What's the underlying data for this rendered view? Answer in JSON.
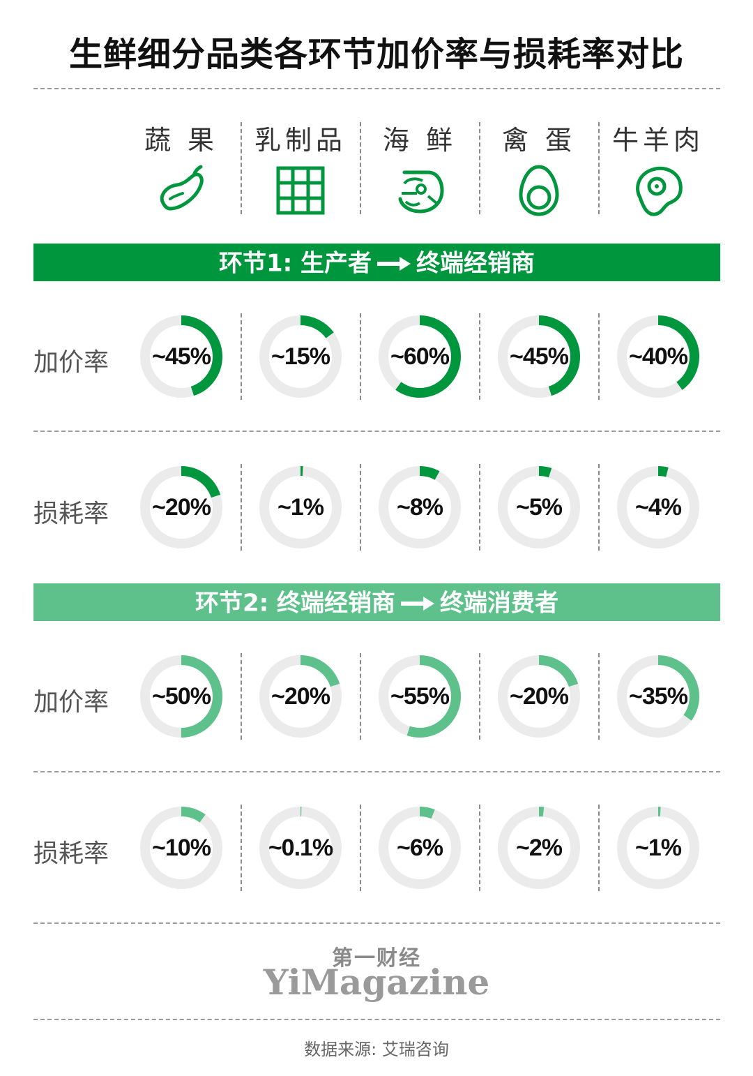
{
  "title": "生鲜细分品类各环节加价率与损耗率对比",
  "categories": [
    {
      "label": "蔬 果",
      "icon": "eggplant-icon"
    },
    {
      "label": "乳制品",
      "icon": "milk-carton-grid-icon"
    },
    {
      "label": "海 鲜",
      "icon": "shrimp-icon"
    },
    {
      "label": "禽 蛋",
      "icon": "egg-icon"
    },
    {
      "label": "牛羊肉",
      "icon": "meat-steak-icon"
    }
  ],
  "stages": [
    {
      "title_left": "环节1: 生产者",
      "title_right": "终端经销商",
      "arrow_icon": "right-arrow-icon",
      "color": "#00963e"
    },
    {
      "title_left": "环节2: 终端经销商",
      "title_right": "终端消费者",
      "arrow_icon": "right-arrow-icon",
      "color": "#5ec18c"
    }
  ],
  "chart_data": {
    "type": "donut",
    "categories": [
      "蔬 果",
      "乳制品",
      "海 鲜",
      "禽 蛋",
      "牛羊肉"
    ],
    "series": [
      {
        "stage": "环节1",
        "name": "加价率",
        "values": [
          45,
          15,
          60,
          45,
          40
        ],
        "labels": [
          "~45%",
          "~15%",
          "~60%",
          "~45%",
          "~40%"
        ]
      },
      {
        "stage": "环节1",
        "name": "损耗率",
        "values": [
          20,
          1,
          8,
          5,
          4
        ],
        "labels": [
          "~20%",
          "~1%",
          "~8%",
          "~5%",
          "~4%"
        ]
      },
      {
        "stage": "环节2",
        "name": "加价率",
        "values": [
          50,
          20,
          55,
          20,
          35
        ],
        "labels": [
          "~50%",
          "~20%",
          "~55%",
          "~20%",
          "~35%"
        ]
      },
      {
        "stage": "环节2",
        "name": "损耗率",
        "values": [
          10,
          0.1,
          6,
          2,
          1
        ],
        "labels": [
          "~10%",
          "~0.1%",
          "~6%",
          "~2%",
          "~1%"
        ]
      }
    ],
    "max": 100
  },
  "colors": {
    "stage1": "#00963e",
    "stage2": "#5ec18c",
    "track": "#ebebeb"
  },
  "brand": {
    "cn": "第一财经",
    "en": "YiMagazine"
  },
  "source": "数据来源: 艾瑞咨询"
}
